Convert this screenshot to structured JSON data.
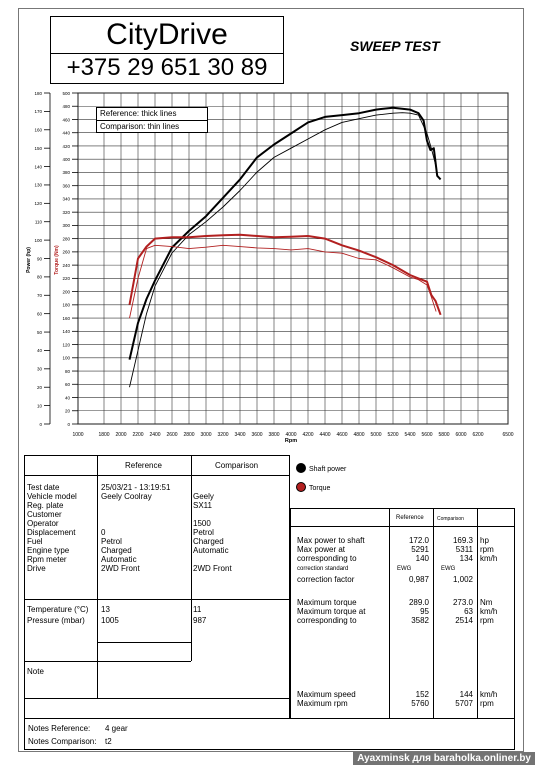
{
  "header": {
    "brand_name": "CityDrive",
    "phone": "+375 29 651 30 89",
    "title": "SWEEP TEST"
  },
  "legend_box": {
    "reference": "Reference: thick lines",
    "comparison": "Comparison: thin lines"
  },
  "chart_data": {
    "type": "line",
    "xlabel": "Rpm",
    "ylabel_left": "Power (hp)",
    "ylabel_right": "Torque (Nm)",
    "xlim": [
      1000,
      6500
    ],
    "ylim_power": [
      0,
      180
    ],
    "ylim_torque": [
      0,
      500
    ],
    "x_ticks": [
      "1000",
      "1800",
      "2000",
      "2200",
      "2400",
      "2600",
      "2800",
      "3000",
      "3200",
      "3400",
      "3600",
      "3800",
      "4000",
      "4200",
      "4400",
      "4600",
      "4800",
      "5000",
      "5200",
      "5400",
      "5600",
      "5800",
      "6000",
      "6200",
      "6500"
    ],
    "power_ticks": [
      "180",
      "170",
      "160",
      "150",
      "140",
      "130",
      "120",
      "110",
      "100",
      "90",
      "80",
      "70",
      "60",
      "50",
      "40",
      "30",
      "20",
      "10",
      "0"
    ],
    "torque_ticks": [
      "500",
      "480",
      "460",
      "440",
      "420",
      "400",
      "380",
      "360",
      "340",
      "320",
      "300",
      "280",
      "260",
      "240",
      "220",
      "200",
      "180",
      "160",
      "140",
      "120",
      "100",
      "80",
      "60",
      "40",
      "20",
      "0"
    ],
    "series": [
      {
        "name": "Shaft power",
        "color": "#000000",
        "width": 2.0,
        "axis": "power",
        "x": [
          2100,
          2200,
          2300,
          2400,
          2600,
          2800,
          3000,
          3200,
          3400,
          3600,
          3800,
          4000,
          4200,
          4400,
          4600,
          4800,
          5000,
          5200,
          5400,
          5500,
          5560,
          5600,
          5640,
          5680,
          5720,
          5760
        ],
        "y": [
          35,
          55,
          68,
          78,
          96,
          105,
          113,
          123,
          133,
          145,
          152,
          158,
          164,
          167,
          168,
          169,
          171,
          172,
          171,
          169,
          165,
          154,
          149,
          150,
          135,
          133
        ]
      },
      {
        "name": "Shaft power comparison",
        "color": "#000000",
        "width": 0.9,
        "axis": "power",
        "x": [
          2100,
          2200,
          2300,
          2400,
          2600,
          2800,
          3000,
          3200,
          3400,
          3600,
          3800,
          4000,
          4200,
          4400,
          4600,
          4800,
          5000,
          5200,
          5311,
          5400,
          5500,
          5600,
          5650,
          5707
        ],
        "y": [
          20,
          40,
          60,
          75,
          93,
          103,
          110,
          118,
          127,
          137,
          145,
          150,
          155,
          160,
          164,
          166,
          168,
          169,
          169.3,
          169,
          168,
          158,
          150,
          140
        ]
      },
      {
        "name": "Torque",
        "color": "#b22020",
        "width": 2.0,
        "axis": "torque",
        "x": [
          2100,
          2200,
          2300,
          2400,
          2600,
          2800,
          3000,
          3200,
          3400,
          3600,
          3800,
          4000,
          4200,
          4400,
          4600,
          4800,
          5000,
          5200,
          5400,
          5500,
          5600,
          5650,
          5700,
          5760
        ],
        "y": [
          180,
          250,
          268,
          280,
          282,
          282,
          284,
          285,
          286,
          284,
          282,
          283,
          284,
          280,
          270,
          262,
          252,
          240,
          225,
          220,
          215,
          195,
          186,
          165
        ]
      },
      {
        "name": "Torque comparison",
        "color": "#b22020",
        "width": 0.9,
        "axis": "torque",
        "x": [
          2100,
          2200,
          2300,
          2400,
          2600,
          2800,
          3000,
          3200,
          3400,
          3600,
          3800,
          4000,
          4200,
          4400,
          4600,
          4800,
          5000,
          5200,
          5400,
          5500,
          5600,
          5650,
          5707
        ],
        "y": [
          160,
          220,
          265,
          270,
          268,
          265,
          267,
          270,
          268,
          266,
          265,
          263,
          265,
          260,
          258,
          250,
          248,
          236,
          222,
          218,
          210,
          192,
          170
        ]
      }
    ]
  },
  "legend_panel": {
    "power": "Shaft power",
    "torque": "Torque"
  },
  "colors": {
    "power": "#000000",
    "torque": "#b22020"
  },
  "left_table": {
    "col_reference": "Reference",
    "col_comparison": "Comparison",
    "labels": [
      "Test date",
      "Vehicle model",
      "Reg. plate",
      "Customer",
      "Operator",
      "Displacement",
      "Fuel",
      "Engine type",
      "Rpm meter",
      "Drive"
    ],
    "reference": [
      "25/03/21 - 13:19:51",
      "Geely Coolray",
      "",
      "",
      "",
      "0",
      "Petrol",
      "Charged",
      "Automatic",
      "2WD Front"
    ],
    "comparison": [
      "",
      "Geely",
      "SX11",
      "",
      "1500",
      "Petrol",
      "Charged",
      "Automatic",
      "",
      "2WD Front"
    ],
    "temp_label": "Temperature (°C)",
    "temp_ref": "13",
    "temp_cmp": "11",
    "press_label": "Pressure (mbar)",
    "press_ref": "1005",
    "press_cmp": "987",
    "note_label": "Note"
  },
  "right_table": {
    "col_reference": "Reference",
    "col_comparison": "Comparison",
    "max_power_label": "Max power to shaft",
    "max_power_ref": "172.0",
    "max_power_cmp": "169.3",
    "max_power_unit": "hp",
    "max_power_at_label": "Max power at",
    "max_power_at_ref": "5291",
    "max_power_at_cmp": "5311",
    "max_power_at_unit": "rpm",
    "corr1_label": "corresponding to",
    "corr1_ref": "140",
    "corr1_cmp": "134",
    "corr1_unit": "km/h",
    "std_label": "correction standard",
    "std_ref": "EWG",
    "std_cmp": "EWG",
    "factor_label": "correction factor",
    "factor_ref": "0,987",
    "factor_cmp": "1,002",
    "max_torque_label": "Maximum torque",
    "max_torque_ref": "289.0",
    "max_torque_cmp": "273.0",
    "max_torque_unit": "Nm",
    "max_torque_at_label": "Maximum torque at",
    "max_torque_at_ref": "95",
    "max_torque_at_cmp": "63",
    "max_torque_at_unit": "km/h",
    "corr2_label": "corresponding to",
    "corr2_ref": "3582",
    "corr2_cmp": "2514",
    "corr2_unit": "rpm",
    "max_speed_label": "Maximum speed",
    "max_speed_ref": "152",
    "max_speed_cmp": "144",
    "max_speed_unit": "km/h",
    "max_rpm_label": "Maximum rpm",
    "max_rpm_ref": "5760",
    "max_rpm_cmp": "5707",
    "max_rpm_unit": "rpm"
  },
  "notes": {
    "ref_label": "Notes Reference:",
    "ref_value": "4 gear",
    "cmp_label": "Notes Comparison:",
    "cmp_value": "t2"
  },
  "watermark": "Ayaxminsk для baraholka.onliner.by"
}
